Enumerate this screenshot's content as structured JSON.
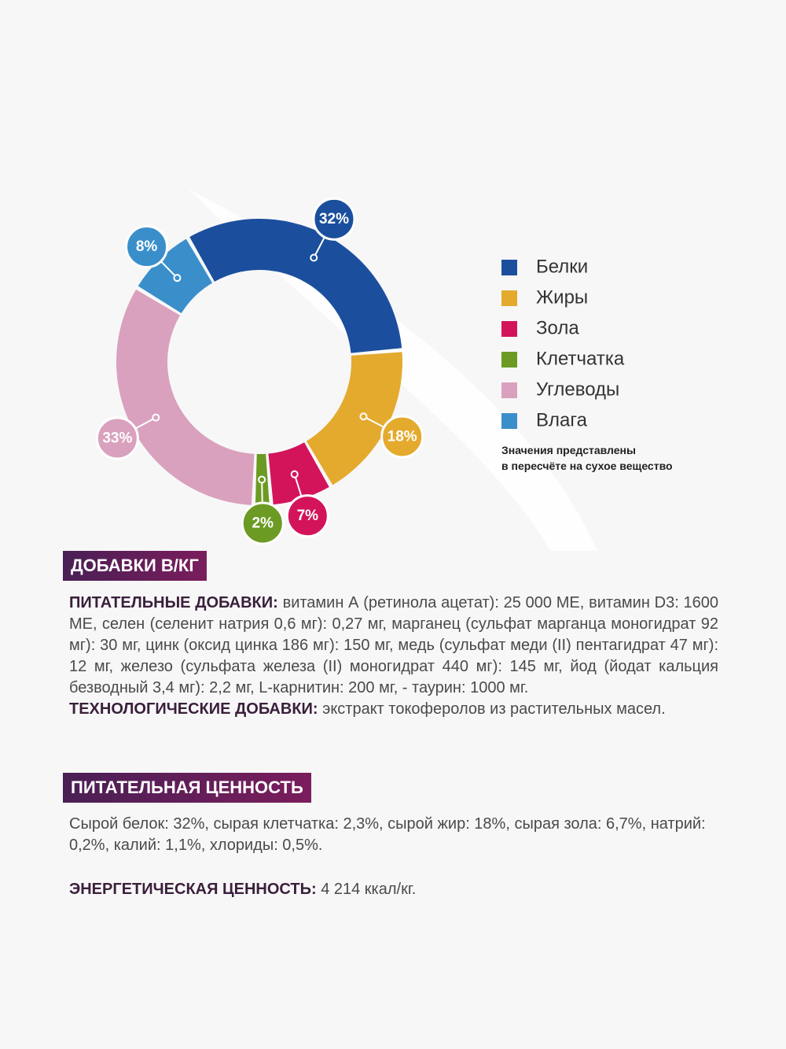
{
  "chart_data": {
    "type": "donut",
    "categories": [
      "Белки",
      "Жиры",
      "Зола",
      "Клетчатка",
      "Углеводы",
      "Влага"
    ],
    "values": [
      32,
      18,
      7,
      2,
      33,
      8
    ],
    "value_labels": [
      "32%",
      "18%",
      "7%",
      "2%",
      "33%",
      "8%"
    ],
    "colors": [
      "#1b4f9e",
      "#e4aa2e",
      "#d3145a",
      "#6b9b22",
      "#d9a1bd",
      "#3a8fcb"
    ],
    "note": [
      "Значения представлены",
      "в пересчёте на сухое вещество"
    ]
  },
  "additives": {
    "heading": "ДОБАВКИ В/КГ",
    "nutritional_label": "ПИТАТЕЛЬНЫЕ ДОБАВКИ:",
    "nutritional_text": "витамин А (ретинола ацетат): 25 000 МЕ, витамин D3: 1600 МЕ, селен (селенит натрия 0,6 мг): 0,27 мг, марганец (сульфат марганца моногидрат 92 мг): 30 мг, цинк (оксид цинка 186 мг): 150 мг, медь (сульфат меди (II) пентагидрат 47 мг): 12 мг, железо (сульфата железа (II) моногидрат 440 мг): 145 мг, йод (йодат кальция безводный 3,4 мг): 2,2 мг, L-карнитин: 200 мг, - таурин: 1000 мг.",
    "technological_label": "ТЕХНОЛОГИЧЕСКИЕ ДОБАВКИ:",
    "technological_text": "экстракт токоферолов из растительных масел."
  },
  "nutrition": {
    "heading": "ПИТАТЕЛЬНАЯ ЦЕННОСТЬ",
    "text": "Сырой белок: 32%, сырая клетчатка: 2,3%, сырой жир: 18%, сырая зола: 6,7%, натрий: 0,2%, калий: 1,1%, хлориды: 0,5%.",
    "energy_label": "ЭНЕРГЕТИЧЕСКАЯ ЦЕННОСТЬ:",
    "energy_text": "4 214 ккал/кг."
  }
}
